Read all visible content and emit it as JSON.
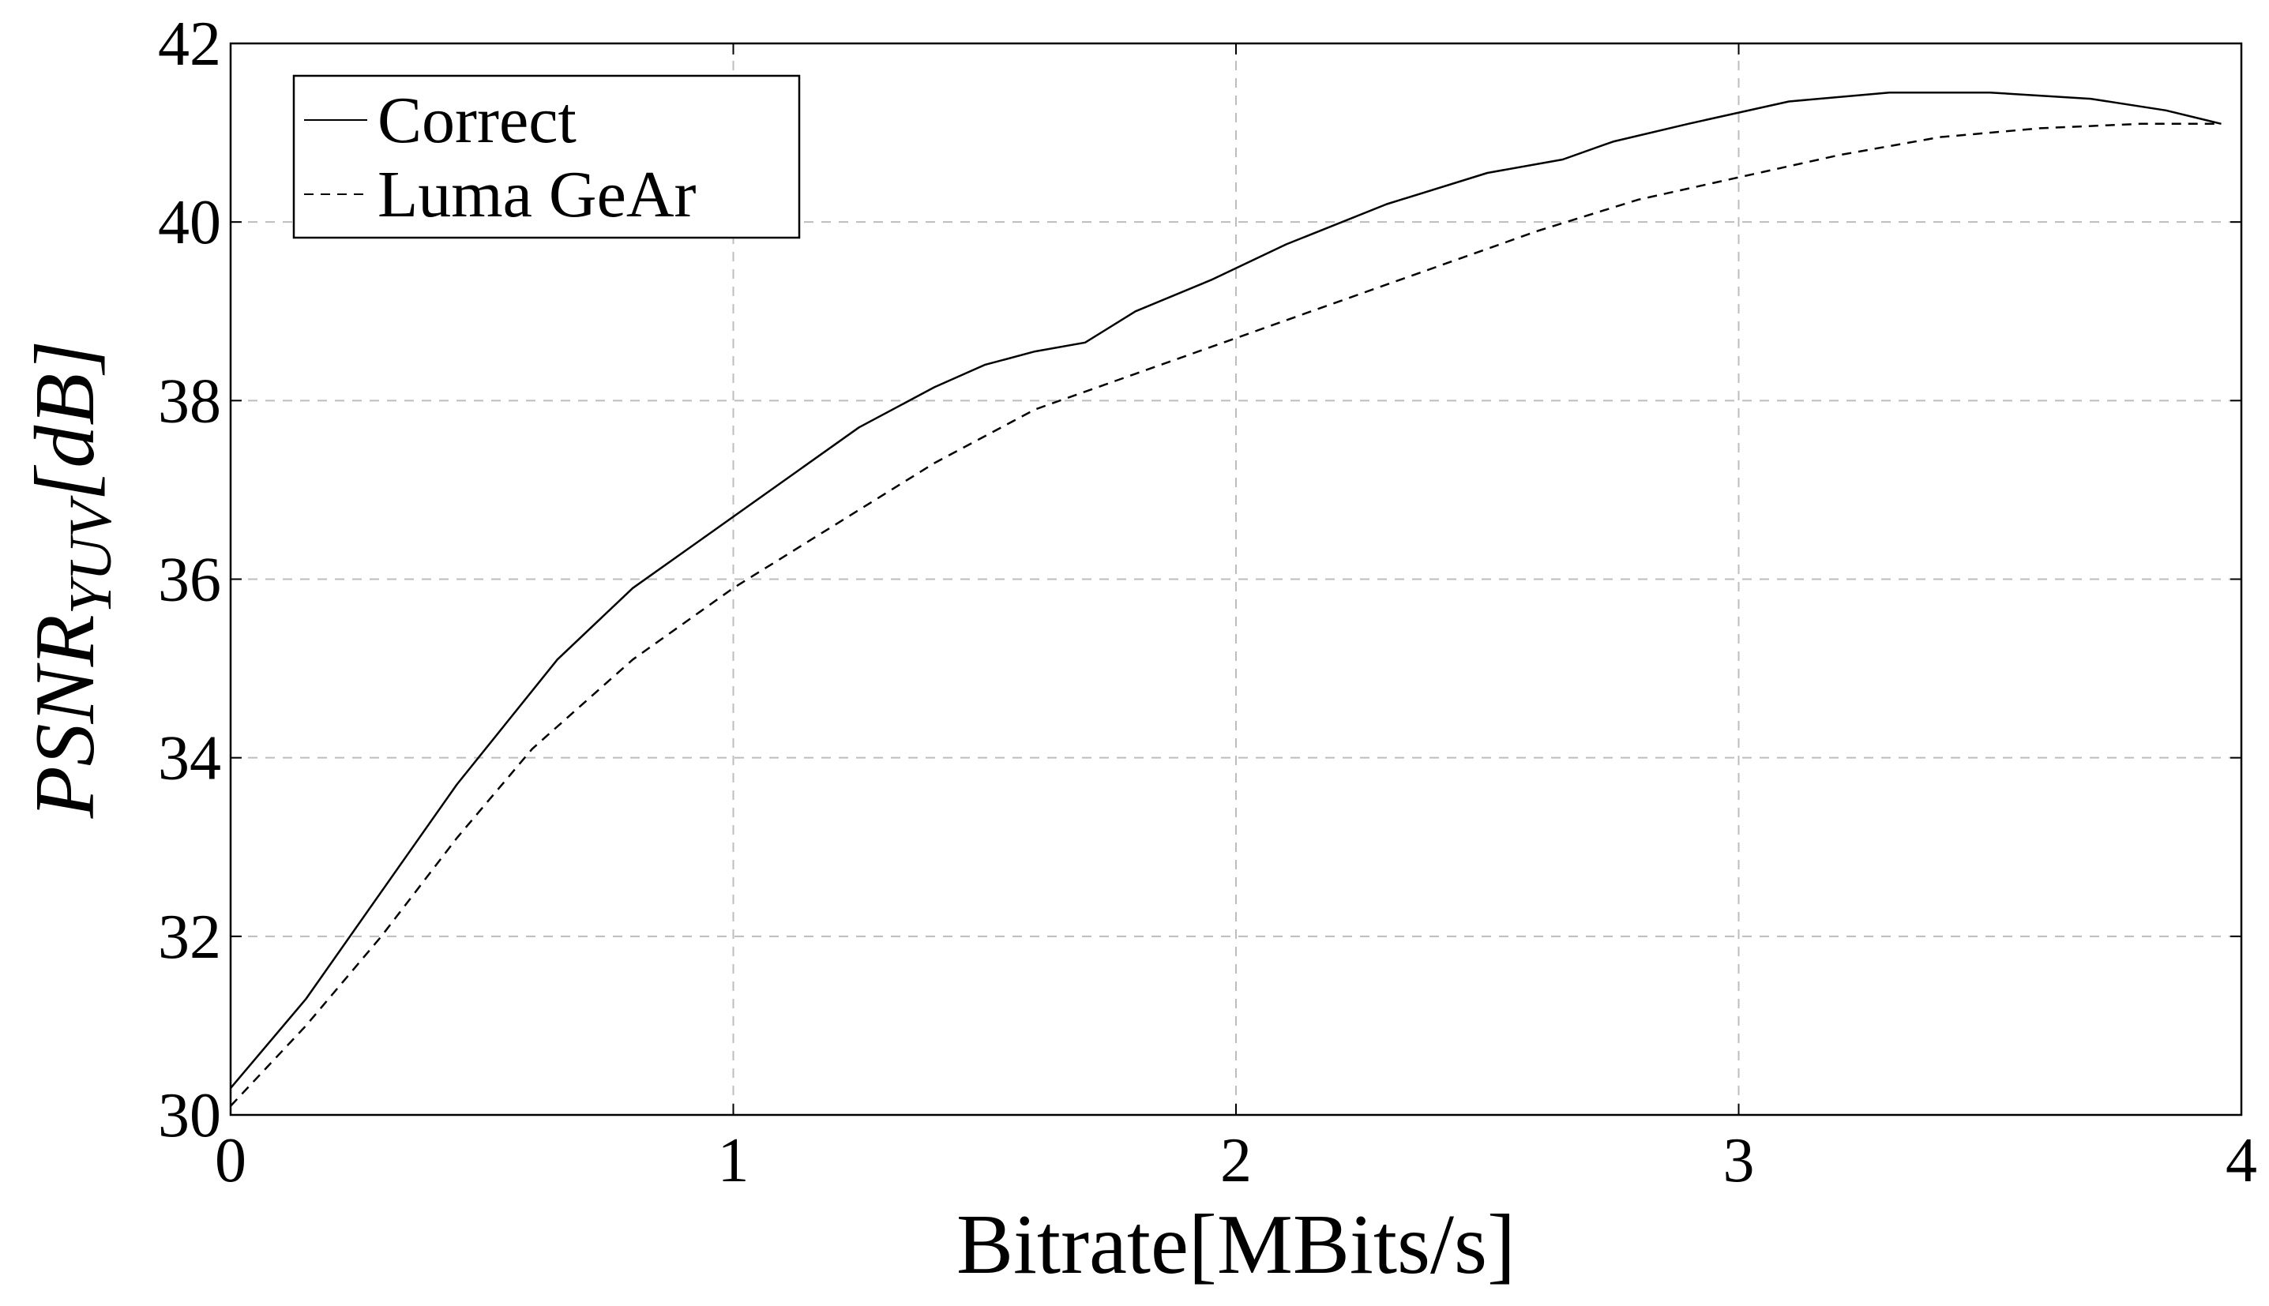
{
  "chart_data": {
    "type": "line",
    "xlabel": "Bitrate[MBits/s]",
    "ylabel": {
      "main": "PSNR",
      "subscript": "YUV",
      "unit": "[dB]"
    },
    "xlim": [
      0,
      4
    ],
    "ylim": [
      30,
      42
    ],
    "xticks": [
      "0",
      "1",
      "2",
      "3",
      "4"
    ],
    "yticks": [
      "30",
      "32",
      "34",
      "36",
      "38",
      "40",
      "42"
    ],
    "grid": true,
    "legend_position": "top-left",
    "series": [
      {
        "name": "Correct",
        "style": "solid",
        "color": "#000000",
        "x": [
          0.0,
          0.15,
          0.3,
          0.45,
          0.55,
          0.65,
          0.8,
          0.95,
          1.1,
          1.25,
          1.4,
          1.5,
          1.6,
          1.7,
          1.8,
          1.95,
          2.1,
          2.3,
          2.5,
          2.65,
          2.75,
          2.9,
          3.1,
          3.3,
          3.5,
          3.7,
          3.85,
          3.96
        ],
        "values": [
          30.3,
          31.3,
          32.5,
          33.7,
          34.4,
          35.1,
          35.9,
          36.5,
          37.1,
          37.7,
          38.15,
          38.4,
          38.55,
          38.65,
          39.0,
          39.35,
          39.75,
          40.2,
          40.55,
          40.7,
          40.9,
          41.1,
          41.35,
          41.45,
          41.45,
          41.38,
          41.25,
          41.1
        ]
      },
      {
        "name": "Luma GeAr",
        "style": "dashed",
        "color": "#000000",
        "x": [
          0.0,
          0.15,
          0.3,
          0.45,
          0.6,
          0.8,
          1.0,
          1.2,
          1.4,
          1.6,
          1.8,
          2.0,
          2.2,
          2.4,
          2.6,
          2.8,
          3.0,
          3.2,
          3.4,
          3.6,
          3.8,
          3.96
        ],
        "values": [
          30.1,
          31.0,
          32.0,
          33.1,
          34.1,
          35.1,
          35.9,
          36.6,
          37.3,
          37.9,
          38.3,
          38.7,
          39.1,
          39.5,
          39.9,
          40.25,
          40.5,
          40.75,
          40.95,
          41.05,
          41.1,
          41.1
        ]
      }
    ]
  }
}
